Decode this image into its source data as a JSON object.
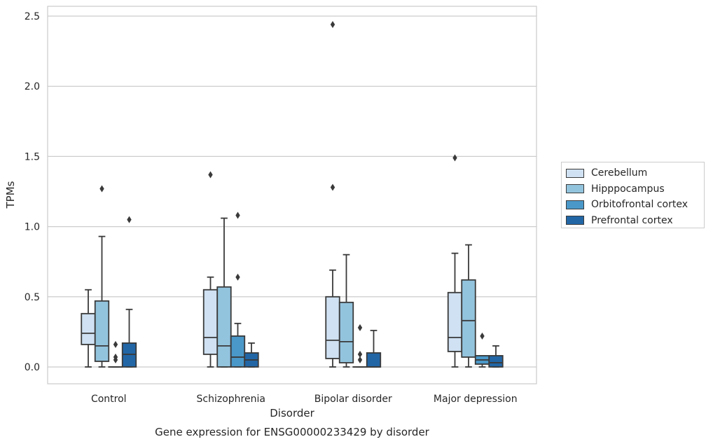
{
  "chart_data": {
    "type": "boxplot",
    "title": "Gene expression for ENSG00000233429 by disorder",
    "xlabel": "Disorder",
    "ylabel": "TPMs",
    "ylim": [
      -0.12,
      2.57
    ],
    "yticks": [
      "0.0",
      "0.5",
      "1.0",
      "1.5",
      "2.0",
      "2.5"
    ],
    "ytick_values": [
      0,
      0.5,
      1.0,
      1.5,
      2.0,
      2.5
    ],
    "grid": true,
    "legend_position": "right",
    "categories": [
      "Control",
      "Schizophrenia",
      "Bipolar disorder",
      "Major depression"
    ],
    "series": [
      {
        "name": "Cerebellum",
        "color": "#cfe1f2",
        "boxes": [
          {
            "whislo": 0.0,
            "q1": 0.16,
            "med": 0.24,
            "q3": 0.38,
            "whishi": 0.55,
            "fliers": []
          },
          {
            "whislo": 0.0,
            "q1": 0.09,
            "med": 0.21,
            "q3": 0.55,
            "whishi": 0.64,
            "fliers": [
              1.37
            ]
          },
          {
            "whislo": 0.0,
            "q1": 0.06,
            "med": 0.19,
            "q3": 0.5,
            "whishi": 0.69,
            "fliers": [
              1.28,
              2.44
            ]
          },
          {
            "whislo": 0.0,
            "q1": 0.11,
            "med": 0.21,
            "q3": 0.53,
            "whishi": 0.81,
            "fliers": [
              1.49
            ]
          }
        ]
      },
      {
        "name": "Hipppocampus",
        "color": "#93c4de",
        "boxes": [
          {
            "whislo": 0.0,
            "q1": 0.04,
            "med": 0.15,
            "q3": 0.47,
            "whishi": 0.93,
            "fliers": [
              1.27
            ]
          },
          {
            "whislo": 0.0,
            "q1": 0.0,
            "med": 0.15,
            "q3": 0.57,
            "whishi": 1.06,
            "fliers": []
          },
          {
            "whislo": 0.0,
            "q1": 0.03,
            "med": 0.18,
            "q3": 0.46,
            "whishi": 0.8,
            "fliers": []
          },
          {
            "whislo": 0.0,
            "q1": 0.07,
            "med": 0.33,
            "q3": 0.62,
            "whishi": 0.87,
            "fliers": []
          }
        ]
      },
      {
        "name": "Orbitofrontal cortex",
        "color": "#4a98c9",
        "boxes": [
          {
            "whislo": 0.0,
            "q1": 0.0,
            "med": 0.0,
            "q3": 0.0,
            "whishi": 0.0,
            "fliers": [
              0.16,
              0.07,
              0.05
            ]
          },
          {
            "whislo": 0.0,
            "q1": 0.0,
            "med": 0.07,
            "q3": 0.22,
            "whishi": 0.31,
            "fliers": [
              1.08,
              0.64
            ]
          },
          {
            "whislo": 0.0,
            "q1": 0.0,
            "med": 0.0,
            "q3": 0.0,
            "whishi": 0.0,
            "fliers": [
              0.28,
              0.09,
              0.05
            ]
          },
          {
            "whislo": 0.0,
            "q1": 0.02,
            "med": 0.05,
            "q3": 0.08,
            "whishi": 0.08,
            "fliers": [
              0.22
            ]
          }
        ]
      },
      {
        "name": "Prefrontal cortex",
        "color": "#2266a6",
        "boxes": [
          {
            "whislo": 0.0,
            "q1": 0.0,
            "med": 0.09,
            "q3": 0.17,
            "whishi": 0.41,
            "fliers": [
              1.05
            ]
          },
          {
            "whislo": 0.0,
            "q1": 0.0,
            "med": 0.05,
            "q3": 0.1,
            "whishi": 0.17,
            "fliers": []
          },
          {
            "whislo": 0.0,
            "q1": 0.0,
            "med": 0.0,
            "q3": 0.1,
            "whishi": 0.26,
            "fliers": []
          },
          {
            "whislo": 0.0,
            "q1": 0.0,
            "med": 0.03,
            "q3": 0.08,
            "whishi": 0.15,
            "fliers": []
          }
        ]
      }
    ]
  }
}
